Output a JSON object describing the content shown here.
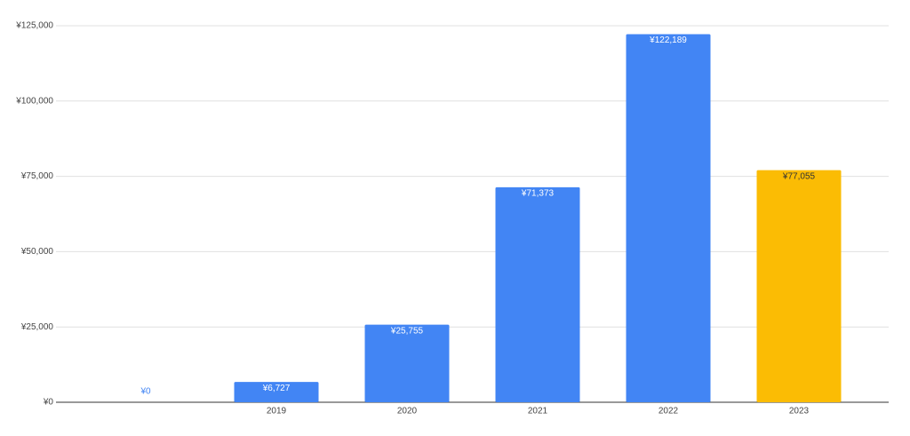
{
  "chart_data": {
    "type": "bar",
    "categories": [
      null,
      "2019",
      "2020",
      "2021",
      "2022",
      "2023"
    ],
    "values": [
      0,
      6727,
      25755,
      71373,
      122189,
      77055
    ],
    "value_labels": [
      "¥0",
      "¥6,727",
      "¥25,755",
      "¥71,373",
      "¥122,189",
      "¥77,055"
    ],
    "colors": [
      "#4285f4",
      "#4285f4",
      "#4285f4",
      "#4285f4",
      "#4285f4",
      "#fbbc04"
    ],
    "ylim": [
      0,
      125000
    ],
    "yticks": [
      {
        "value": 0,
        "label": "¥0"
      },
      {
        "value": 25000,
        "label": "¥25,000"
      },
      {
        "value": 50000,
        "label": "¥50,000"
      },
      {
        "value": 75000,
        "label": "¥75,000"
      },
      {
        "value": 100000,
        "label": "¥100,000"
      },
      {
        "value": 125000,
        "label": "¥125,000"
      }
    ],
    "grid": true
  }
}
